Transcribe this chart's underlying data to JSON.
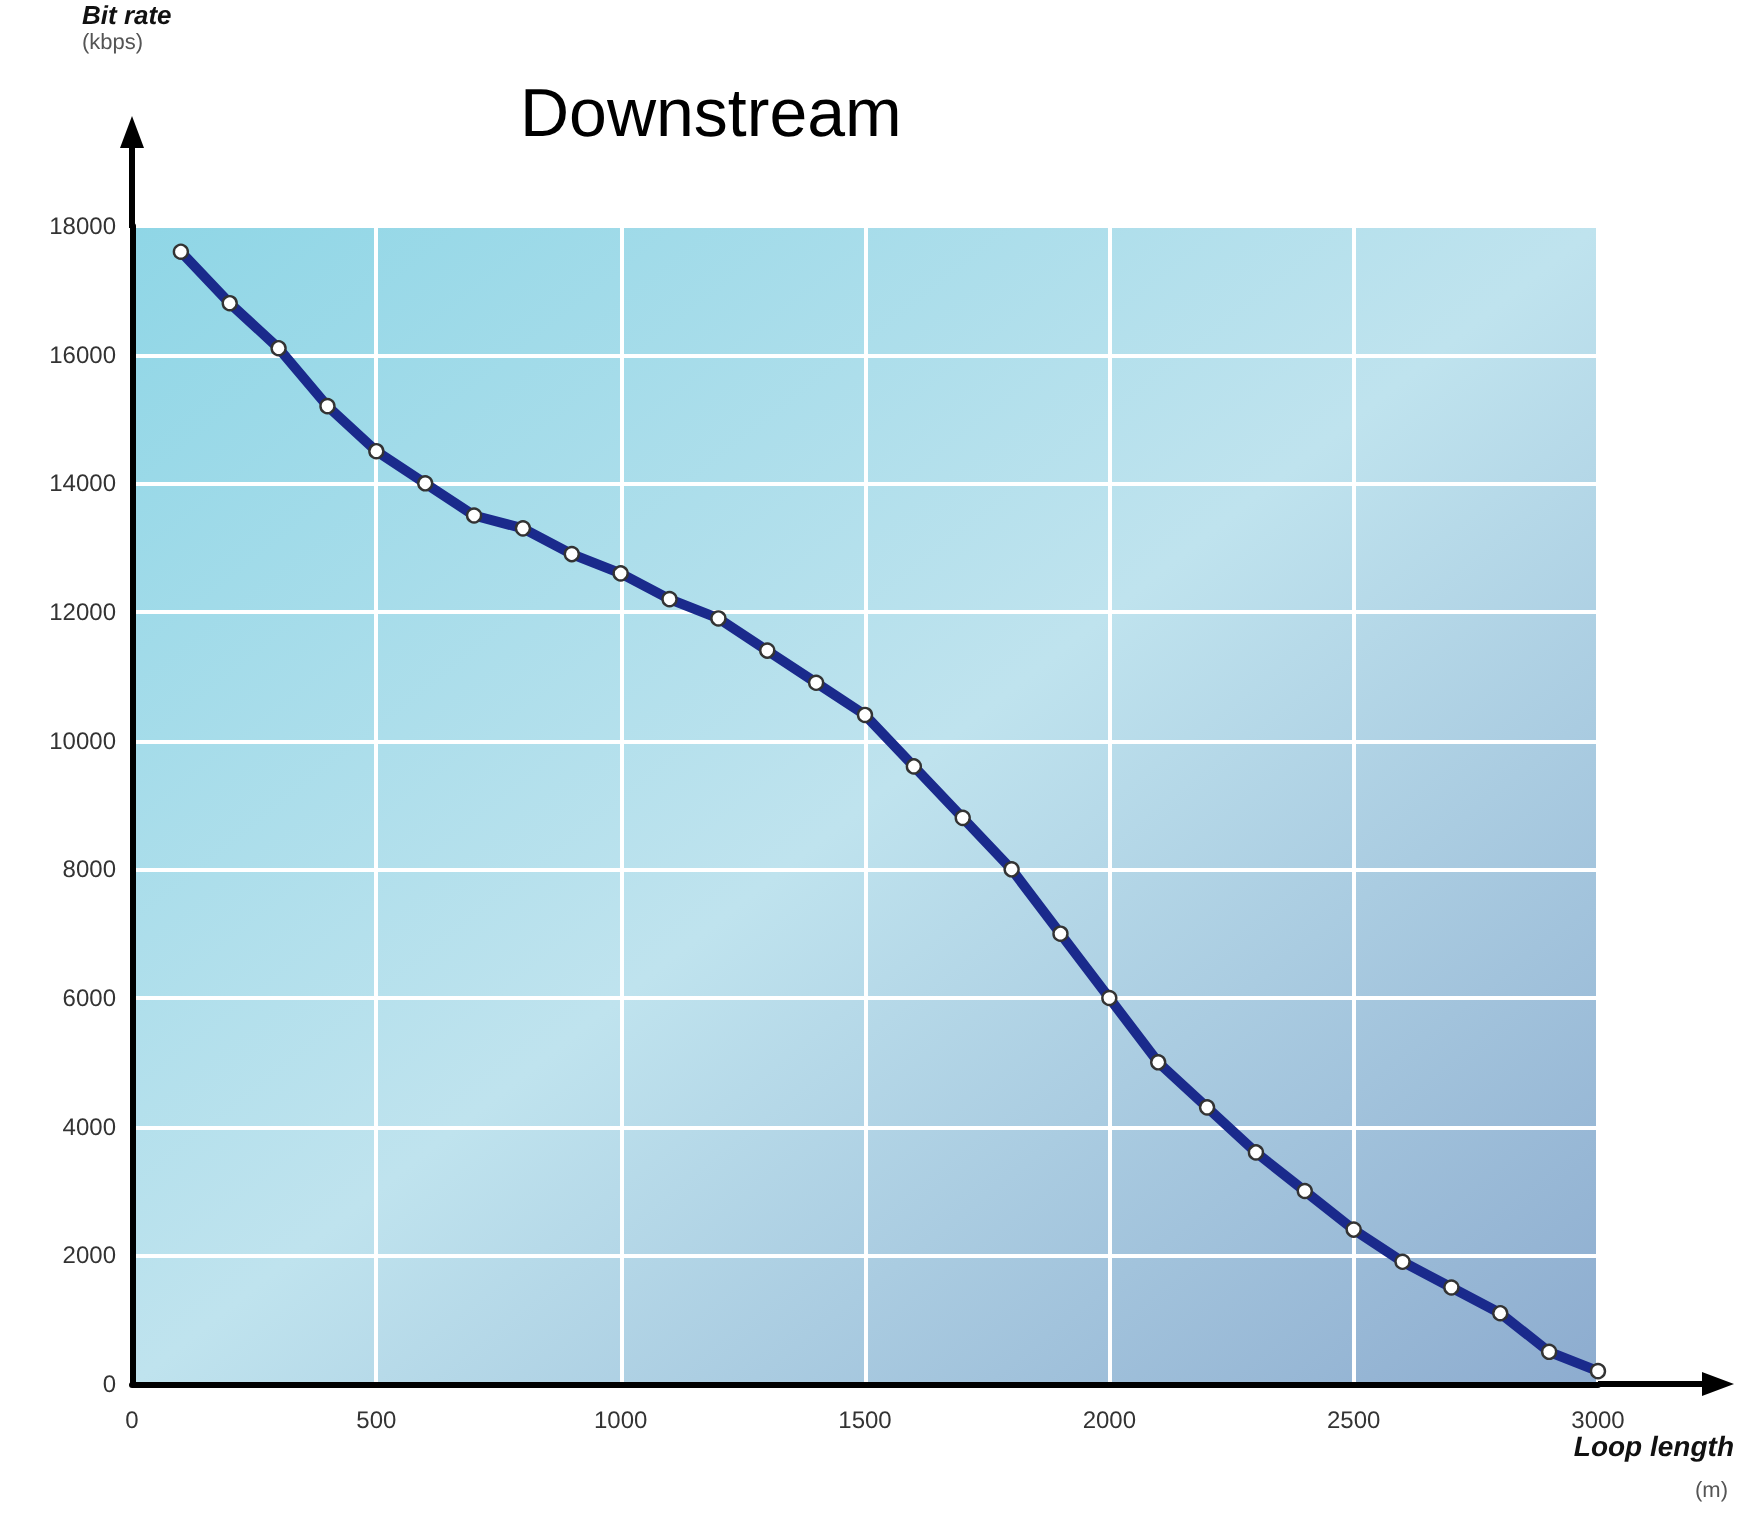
{
  "chart_data": {
    "type": "line",
    "title": "Downstream",
    "xlabel": "Loop length",
    "annotations": [
      "(kbps)",
      "(m)",
      "Bit rate"
    ],
    "x": [
      100,
      200,
      300,
      400,
      500,
      600,
      700,
      800,
      900,
      1000,
      1100,
      1200,
      1300,
      1400,
      1500,
      1600,
      1700,
      1800,
      1900,
      2000,
      2100,
      2200,
      2300,
      2400,
      2500,
      2600,
      2700,
      2800,
      2900,
      3000
    ],
    "series": [
      {
        "color": "#1a2a8c",
        "values": [
          17600,
          16800,
          16100,
          15200,
          14500,
          14000,
          13500,
          13300,
          12900,
          12600,
          12200,
          11900,
          11400,
          10900,
          10400,
          9600,
          8800,
          8000,
          7000,
          6000,
          5000,
          4300,
          3600,
          3000,
          2400,
          1900,
          1500,
          1100,
          500,
          200
        ]
      }
    ],
    "xlim": [
      0,
      3000
    ],
    "xticks": [
      0,
      500,
      1000,
      1500,
      2000,
      2500,
      3000
    ],
    "ylim": [
      0,
      18000
    ],
    "yticks": [
      0,
      2000,
      4000,
      6000,
      8000,
      10000,
      12000,
      14000,
      16000,
      18000
    ],
    "grid": true,
    "marker": "circle",
    "line_style": "solid"
  }
}
